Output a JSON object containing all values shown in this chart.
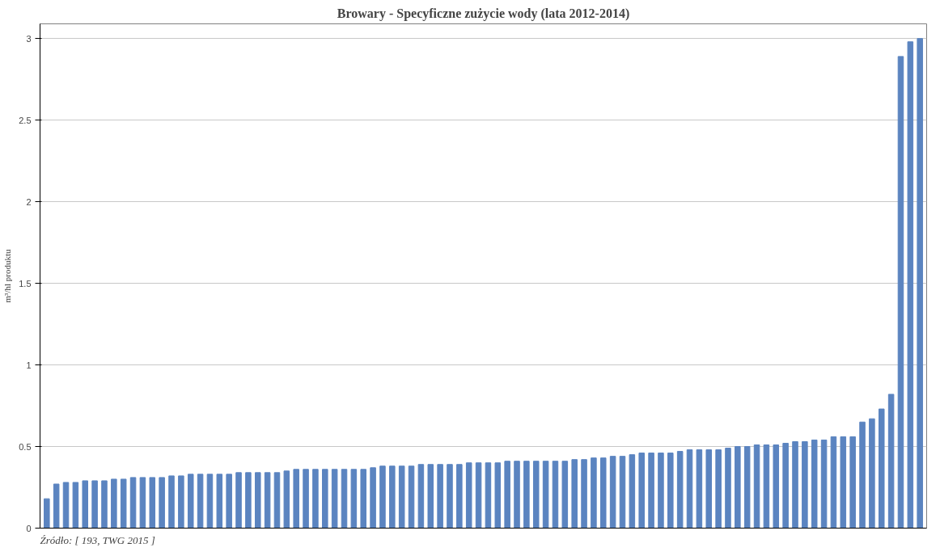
{
  "chart_data": {
    "type": "bar",
    "title": "Browary - Specyficzne zużycie wody (lata 2012-2014)",
    "ylabel": "m³/hl produktu",
    "categories": [
      null,
      null,
      null,
      null,
      null,
      null,
      null,
      null,
      null,
      null,
      null,
      null,
      null,
      null,
      null,
      null,
      null,
      null,
      null,
      null,
      null,
      null,
      null,
      null,
      null,
      null,
      null,
      null,
      null,
      null,
      null,
      null,
      null,
      null,
      null,
      null,
      null,
      null,
      null,
      null,
      null,
      null,
      null,
      null,
      null,
      null,
      null,
      null,
      null,
      null,
      null,
      null,
      null,
      null,
      null,
      null,
      null,
      null,
      null,
      null,
      null,
      null,
      null,
      null,
      null,
      null,
      null,
      null,
      null,
      null,
      null,
      null,
      null,
      null,
      null,
      null,
      null,
      null,
      null,
      null,
      null,
      null,
      null,
      null,
      null,
      null,
      null,
      null,
      null,
      null,
      null,
      null
    ],
    "values": [
      0.18,
      0.27,
      0.28,
      0.28,
      0.29,
      0.29,
      0.29,
      0.3,
      0.3,
      0.31,
      0.31,
      0.31,
      0.31,
      0.32,
      0.32,
      0.33,
      0.33,
      0.33,
      0.33,
      0.33,
      0.34,
      0.34,
      0.34,
      0.34,
      0.34,
      0.35,
      0.36,
      0.36,
      0.36,
      0.36,
      0.36,
      0.36,
      0.36,
      0.36,
      0.37,
      0.38,
      0.38,
      0.38,
      0.38,
      0.39,
      0.39,
      0.39,
      0.39,
      0.39,
      0.4,
      0.4,
      0.4,
      0.4,
      0.41,
      0.41,
      0.41,
      0.41,
      0.41,
      0.41,
      0.41,
      0.42,
      0.42,
      0.43,
      0.43,
      0.44,
      0.44,
      0.45,
      0.46,
      0.46,
      0.46,
      0.46,
      0.47,
      0.48,
      0.48,
      0.48,
      0.48,
      0.49,
      0.5,
      0.5,
      0.51,
      0.51,
      0.51,
      0.52,
      0.53,
      0.53,
      0.54,
      0.54,
      0.56,
      0.56,
      0.56,
      0.65,
      0.67,
      0.73,
      0.82,
      2.89,
      2.98,
      3.0
    ],
    "color": "#5b84c0",
    "ylim": [
      0,
      3.09
    ],
    "yticks": [
      0,
      0.5,
      1,
      1.5,
      2,
      2.5,
      3
    ],
    "grid": "y",
    "annotations": [
      "Źródło: [ 193, TWG 2015 ]"
    ]
  }
}
